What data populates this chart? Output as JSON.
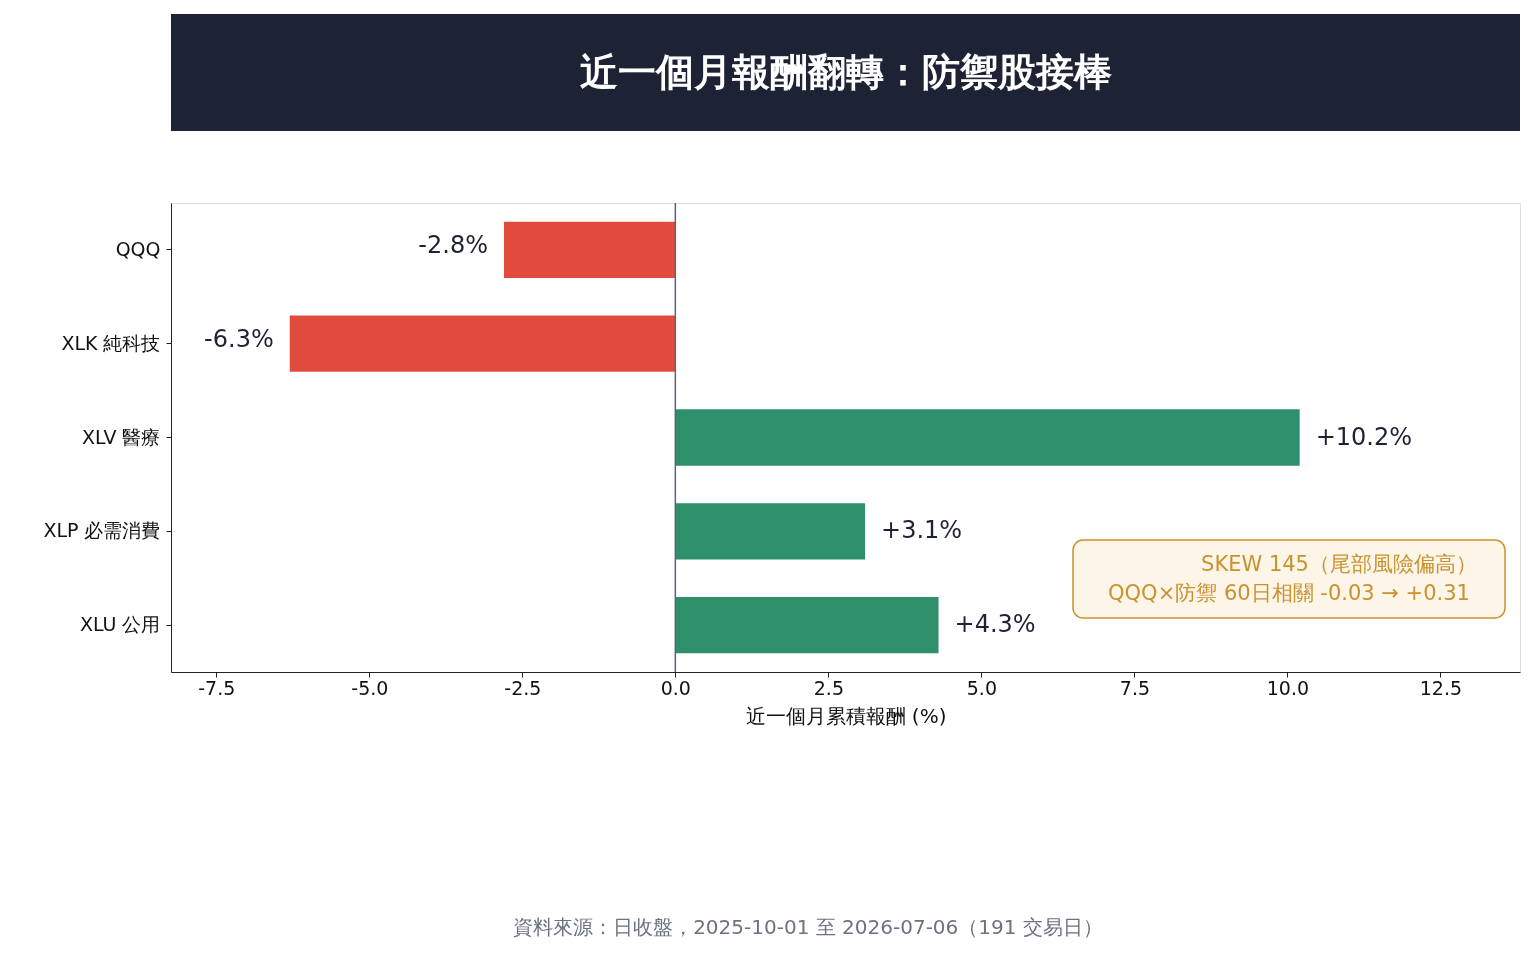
{
  "chart_data": {
    "type": "bar",
    "orientation": "horizontal",
    "title": "近一個月報酬翻轉：防禦股接棒",
    "xlabel": "近一個月累積報酬 (%)",
    "categories": [
      "QQQ",
      "XLK 純科技",
      "XLV 醫療",
      "XLP 必需消費",
      "XLU 公用"
    ],
    "values": [
      -2.8,
      -6.3,
      10.2,
      3.1,
      4.3
    ],
    "colors": [
      "#e04b3c",
      "#e04b3c",
      "#2e8f6b",
      "#2e8f6b",
      "#2e8f6b"
    ],
    "value_labels": [
      "-2.8%",
      "-6.3%",
      "+10.2%",
      "+3.1%",
      "+4.3%"
    ],
    "xlim": [
      -8.24,
      13.8
    ],
    "xticks": [
      -7.5,
      {
        "value": -5,
        "label": "-5.0"
      },
      -2.5,
      {
        "value": 0,
        "label": "0.0"
      },
      2.5,
      {
        "value": 5,
        "label": "5.0"
      },
      7.5,
      {
        "value": 10,
        "label": "10.0"
      },
      12.5
    ],
    "ref_lines": [
      {
        "axis": "x",
        "value": 0,
        "color": "#5a6478"
      }
    ],
    "grid": false,
    "legend": false,
    "annotations": [
      "SKEW 145（尾部風險偏高）",
      "QQQ×防禦 60日相關 -0.03 → +0.31",
      "資料來源：日收盤，2025-10-01 至 2026-07-06（191 交易日）"
    ]
  }
}
